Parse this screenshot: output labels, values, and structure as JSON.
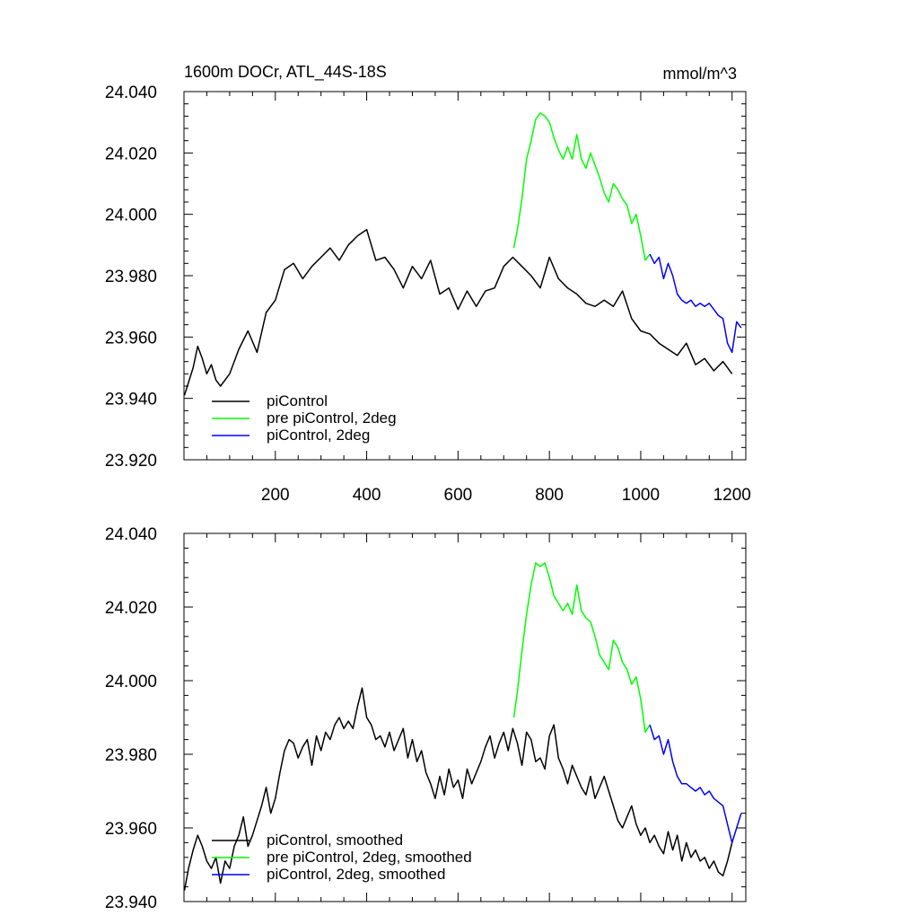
{
  "chart_data": [
    {
      "type": "line",
      "title": "1600m DOCr, ATL_44S-18S",
      "units_label": "mmol/m^3",
      "xlim": [
        0,
        1230
      ],
      "ylim": [
        23.92,
        24.04
      ],
      "x_ticks": [
        200,
        400,
        600,
        800,
        1000,
        1200
      ],
      "x_ticklabels": [
        "200",
        "400",
        "600",
        "800",
        "1000",
        "1200"
      ],
      "y_ticks": [
        23.92,
        23.94,
        23.96,
        23.98,
        24.0,
        24.02,
        24.04
      ],
      "y_ticklabels": [
        "23.920",
        "23.940",
        "23.960",
        "23.980",
        "24.000",
        "24.020",
        "24.040"
      ],
      "legend_position": "lower-left",
      "series": [
        {
          "name": "piControl",
          "color": "#000000",
          "x": [
            1,
            20,
            30,
            40,
            50,
            60,
            70,
            80,
            100,
            120,
            140,
            160,
            180,
            200,
            220,
            240,
            260,
            280,
            300,
            320,
            340,
            360,
            380,
            400,
            420,
            440,
            460,
            480,
            500,
            520,
            540,
            560,
            580,
            600,
            620,
            640,
            660,
            680,
            700,
            720,
            740,
            760,
            780,
            800,
            820,
            840,
            860,
            880,
            900,
            920,
            940,
            960,
            980,
            1000,
            1020,
            1040,
            1060,
            1080,
            1100,
            1120,
            1140,
            1160,
            1180,
            1200
          ],
          "values": [
            23.941,
            23.95,
            23.957,
            23.953,
            23.948,
            23.951,
            23.946,
            23.944,
            23.948,
            23.956,
            23.962,
            23.955,
            23.968,
            23.972,
            23.982,
            23.984,
            23.979,
            23.983,
            23.986,
            23.989,
            23.985,
            23.99,
            23.993,
            23.995,
            23.985,
            23.986,
            23.982,
            23.976,
            23.983,
            23.979,
            23.985,
            23.974,
            23.976,
            23.969,
            23.975,
            23.97,
            23.975,
            23.976,
            23.983,
            23.986,
            23.983,
            23.98,
            23.976,
            23.986,
            23.979,
            23.976,
            23.974,
            23.971,
            23.97,
            23.972,
            23.97,
            23.975,
            23.966,
            23.962,
            23.961,
            23.958,
            23.956,
            23.954,
            23.958,
            23.951,
            23.953,
            23.949,
            23.952,
            23.948
          ]
        },
        {
          "name": "pre piControl, 2deg",
          "color": "#00ff00",
          "x": [
            722,
            730,
            740,
            750,
            760,
            770,
            780,
            790,
            800,
            810,
            820,
            830,
            840,
            850,
            860,
            870,
            880,
            890,
            900,
            910,
            920,
            930,
            940,
            950,
            960,
            970,
            980,
            990,
            1000,
            1010,
            1020
          ],
          "values": [
            23.989,
            23.995,
            24.005,
            24.018,
            24.024,
            24.031,
            24.033,
            24.032,
            24.03,
            24.025,
            24.021,
            24.018,
            24.022,
            24.018,
            24.026,
            24.018,
            24.015,
            24.02,
            24.016,
            24.012,
            24.007,
            24.004,
            24.01,
            24.008,
            24.005,
            24.003,
            23.997,
            24.0,
            23.993,
            23.985,
            23.987
          ]
        },
        {
          "name": "piControl, 2deg",
          "color": "#0000ff",
          "x": [
            1020,
            1030,
            1040,
            1050,
            1060,
            1070,
            1080,
            1090,
            1100,
            1110,
            1120,
            1130,
            1140,
            1150,
            1160,
            1170,
            1180,
            1190,
            1200,
            1210,
            1220
          ],
          "values": [
            23.987,
            23.984,
            23.986,
            23.979,
            23.984,
            23.98,
            23.974,
            23.972,
            23.971,
            23.972,
            23.97,
            23.971,
            23.97,
            23.971,
            23.969,
            23.967,
            23.966,
            23.958,
            23.955,
            23.965,
            23.963
          ]
        }
      ]
    },
    {
      "type": "line",
      "xlim": [
        0,
        1230
      ],
      "ylim": [
        23.94,
        24.04
      ],
      "x_ticks": [
        200,
        400,
        600,
        800,
        1000,
        1200
      ],
      "y_ticks": [
        23.94,
        23.96,
        23.98,
        24.0,
        24.02,
        24.04
      ],
      "y_ticklabels": [
        "23.940",
        "23.960",
        "23.980",
        "24.000",
        "24.020",
        "24.040"
      ],
      "legend_position": "lower-left",
      "series": [
        {
          "name": "piControl, smoothed",
          "color": "#000000",
          "x": [
            1,
            10,
            20,
            30,
            40,
            50,
            60,
            70,
            80,
            90,
            100,
            110,
            120,
            130,
            140,
            150,
            160,
            170,
            180,
            190,
            200,
            210,
            220,
            230,
            240,
            250,
            260,
            270,
            280,
            290,
            300,
            310,
            320,
            330,
            340,
            350,
            360,
            370,
            380,
            390,
            400,
            410,
            420,
            430,
            440,
            450,
            460,
            470,
            480,
            490,
            500,
            510,
            520,
            530,
            540,
            550,
            560,
            570,
            580,
            590,
            600,
            610,
            620,
            630,
            640,
            650,
            660,
            670,
            680,
            690,
            700,
            710,
            720,
            730,
            740,
            750,
            760,
            770,
            780,
            790,
            800,
            810,
            820,
            830,
            840,
            850,
            860,
            870,
            880,
            890,
            900,
            910,
            920,
            930,
            940,
            950,
            960,
            970,
            980,
            990,
            1000,
            1010,
            1020,
            1030,
            1040,
            1050,
            1060,
            1070,
            1080,
            1090,
            1100,
            1110,
            1120,
            1130,
            1140,
            1150,
            1160,
            1170,
            1180,
            1190,
            1200
          ],
          "values": [
            23.943,
            23.949,
            23.954,
            23.958,
            23.955,
            23.951,
            23.949,
            23.952,
            23.945,
            23.951,
            23.949,
            23.955,
            23.958,
            23.963,
            23.955,
            23.958,
            23.962,
            23.966,
            23.971,
            23.964,
            23.968,
            23.975,
            23.981,
            23.984,
            23.983,
            23.979,
            23.982,
            23.984,
            23.977,
            23.985,
            23.981,
            23.986,
            23.984,
            23.988,
            23.99,
            23.987,
            23.989,
            23.987,
            23.993,
            23.998,
            23.99,
            23.988,
            23.984,
            23.985,
            23.982,
            23.986,
            23.981,
            23.984,
            23.987,
            23.979,
            23.984,
            23.978,
            23.981,
            23.975,
            23.972,
            23.968,
            23.974,
            23.969,
            23.976,
            23.971,
            23.973,
            23.968,
            23.976,
            23.972,
            23.975,
            23.978,
            23.982,
            23.985,
            23.979,
            23.983,
            23.986,
            23.981,
            23.987,
            23.983,
            23.977,
            23.986,
            23.984,
            23.978,
            23.979,
            23.976,
            23.985,
            23.988,
            23.979,
            23.976,
            23.972,
            23.977,
            23.974,
            23.971,
            23.969,
            23.974,
            23.968,
            23.971,
            23.974,
            23.97,
            23.966,
            23.962,
            23.96,
            23.963,
            23.966,
            23.961,
            23.958,
            23.96,
            23.956,
            23.958,
            23.955,
            23.953,
            23.959,
            23.954,
            23.958,
            23.951,
            23.956,
            23.952,
            23.954,
            23.951,
            23.952,
            23.949,
            23.951,
            23.948,
            23.947,
            23.951,
            23.956
          ]
        },
        {
          "name": "pre piControl, 2deg, smoothed",
          "color": "#00ff00",
          "x": [
            722,
            730,
            740,
            750,
            760,
            770,
            780,
            790,
            800,
            810,
            820,
            830,
            840,
            850,
            860,
            870,
            880,
            890,
            900,
            910,
            920,
            930,
            940,
            950,
            960,
            970,
            980,
            990,
            1000,
            1010,
            1020
          ],
          "values": [
            23.99,
            23.997,
            24.008,
            24.018,
            24.026,
            24.032,
            24.031,
            24.032,
            24.028,
            24.023,
            24.021,
            24.019,
            24.021,
            24.018,
            24.026,
            24.019,
            24.017,
            24.016,
            24.012,
            24.007,
            24.005,
            24.003,
            24.011,
            24.009,
            24.005,
            24.003,
            23.999,
            24.001,
            23.995,
            23.986,
            23.988
          ]
        },
        {
          "name": "piControl, 2deg, smoothed",
          "color": "#0000ff",
          "x": [
            1020,
            1030,
            1040,
            1050,
            1060,
            1070,
            1080,
            1090,
            1100,
            1110,
            1120,
            1130,
            1140,
            1150,
            1160,
            1170,
            1180,
            1190,
            1200,
            1210,
            1220
          ],
          "values": [
            23.988,
            23.984,
            23.985,
            23.98,
            23.984,
            23.978,
            23.974,
            23.972,
            23.972,
            23.971,
            23.97,
            23.971,
            23.969,
            23.97,
            23.968,
            23.967,
            23.966,
            23.961,
            23.956,
            23.96,
            23.964
          ]
        }
      ]
    }
  ]
}
